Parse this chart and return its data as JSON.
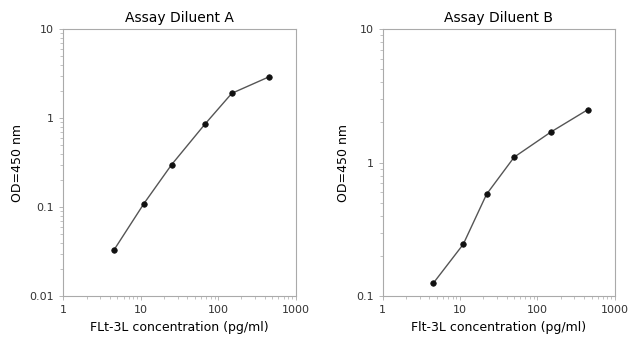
{
  "chart_A": {
    "title": "Assay Diluent A",
    "x": [
      4.5,
      11,
      25,
      67,
      150,
      450
    ],
    "y": [
      0.033,
      0.11,
      0.3,
      0.85,
      1.9,
      2.9
    ],
    "xlim": [
      1,
      1000
    ],
    "ylim": [
      0.01,
      10
    ],
    "xlabel": "FLt-3L concentration (pg/ml)",
    "ylabel": "OD=450 nm",
    "yticks": [
      0.01,
      0.1,
      1,
      10
    ],
    "ytick_labels": [
      "0.01",
      "0.1",
      "1",
      "10"
    ],
    "xticks": [
      1,
      10,
      100,
      1000
    ],
    "xtick_labels": [
      "1",
      "10",
      "100",
      "1000"
    ]
  },
  "chart_B": {
    "title": "Assay Diluent B",
    "x": [
      4.5,
      11,
      22,
      50,
      150,
      450
    ],
    "y": [
      0.125,
      0.245,
      0.58,
      1.1,
      1.7,
      2.5
    ],
    "xlim": [
      1,
      1000
    ],
    "ylim": [
      0.1,
      10
    ],
    "xlabel": "Flt-3L concentration (pg/ml)",
    "ylabel": "OD=450 nm",
    "yticks": [
      0.1,
      1,
      10
    ],
    "ytick_labels": [
      "0.1",
      "1",
      "10"
    ],
    "xticks": [
      1,
      10,
      100,
      1000
    ],
    "xtick_labels": [
      "1",
      "10",
      "100",
      "1000"
    ]
  },
  "line_color": "#555555",
  "marker": "o",
  "marker_color": "#111111",
  "marker_size": 4,
  "line_width": 1.0,
  "background_color": "#ffffff",
  "title_fontsize": 10,
  "label_fontsize": 9,
  "tick_fontsize": 8,
  "spine_color": "#aaaaaa"
}
